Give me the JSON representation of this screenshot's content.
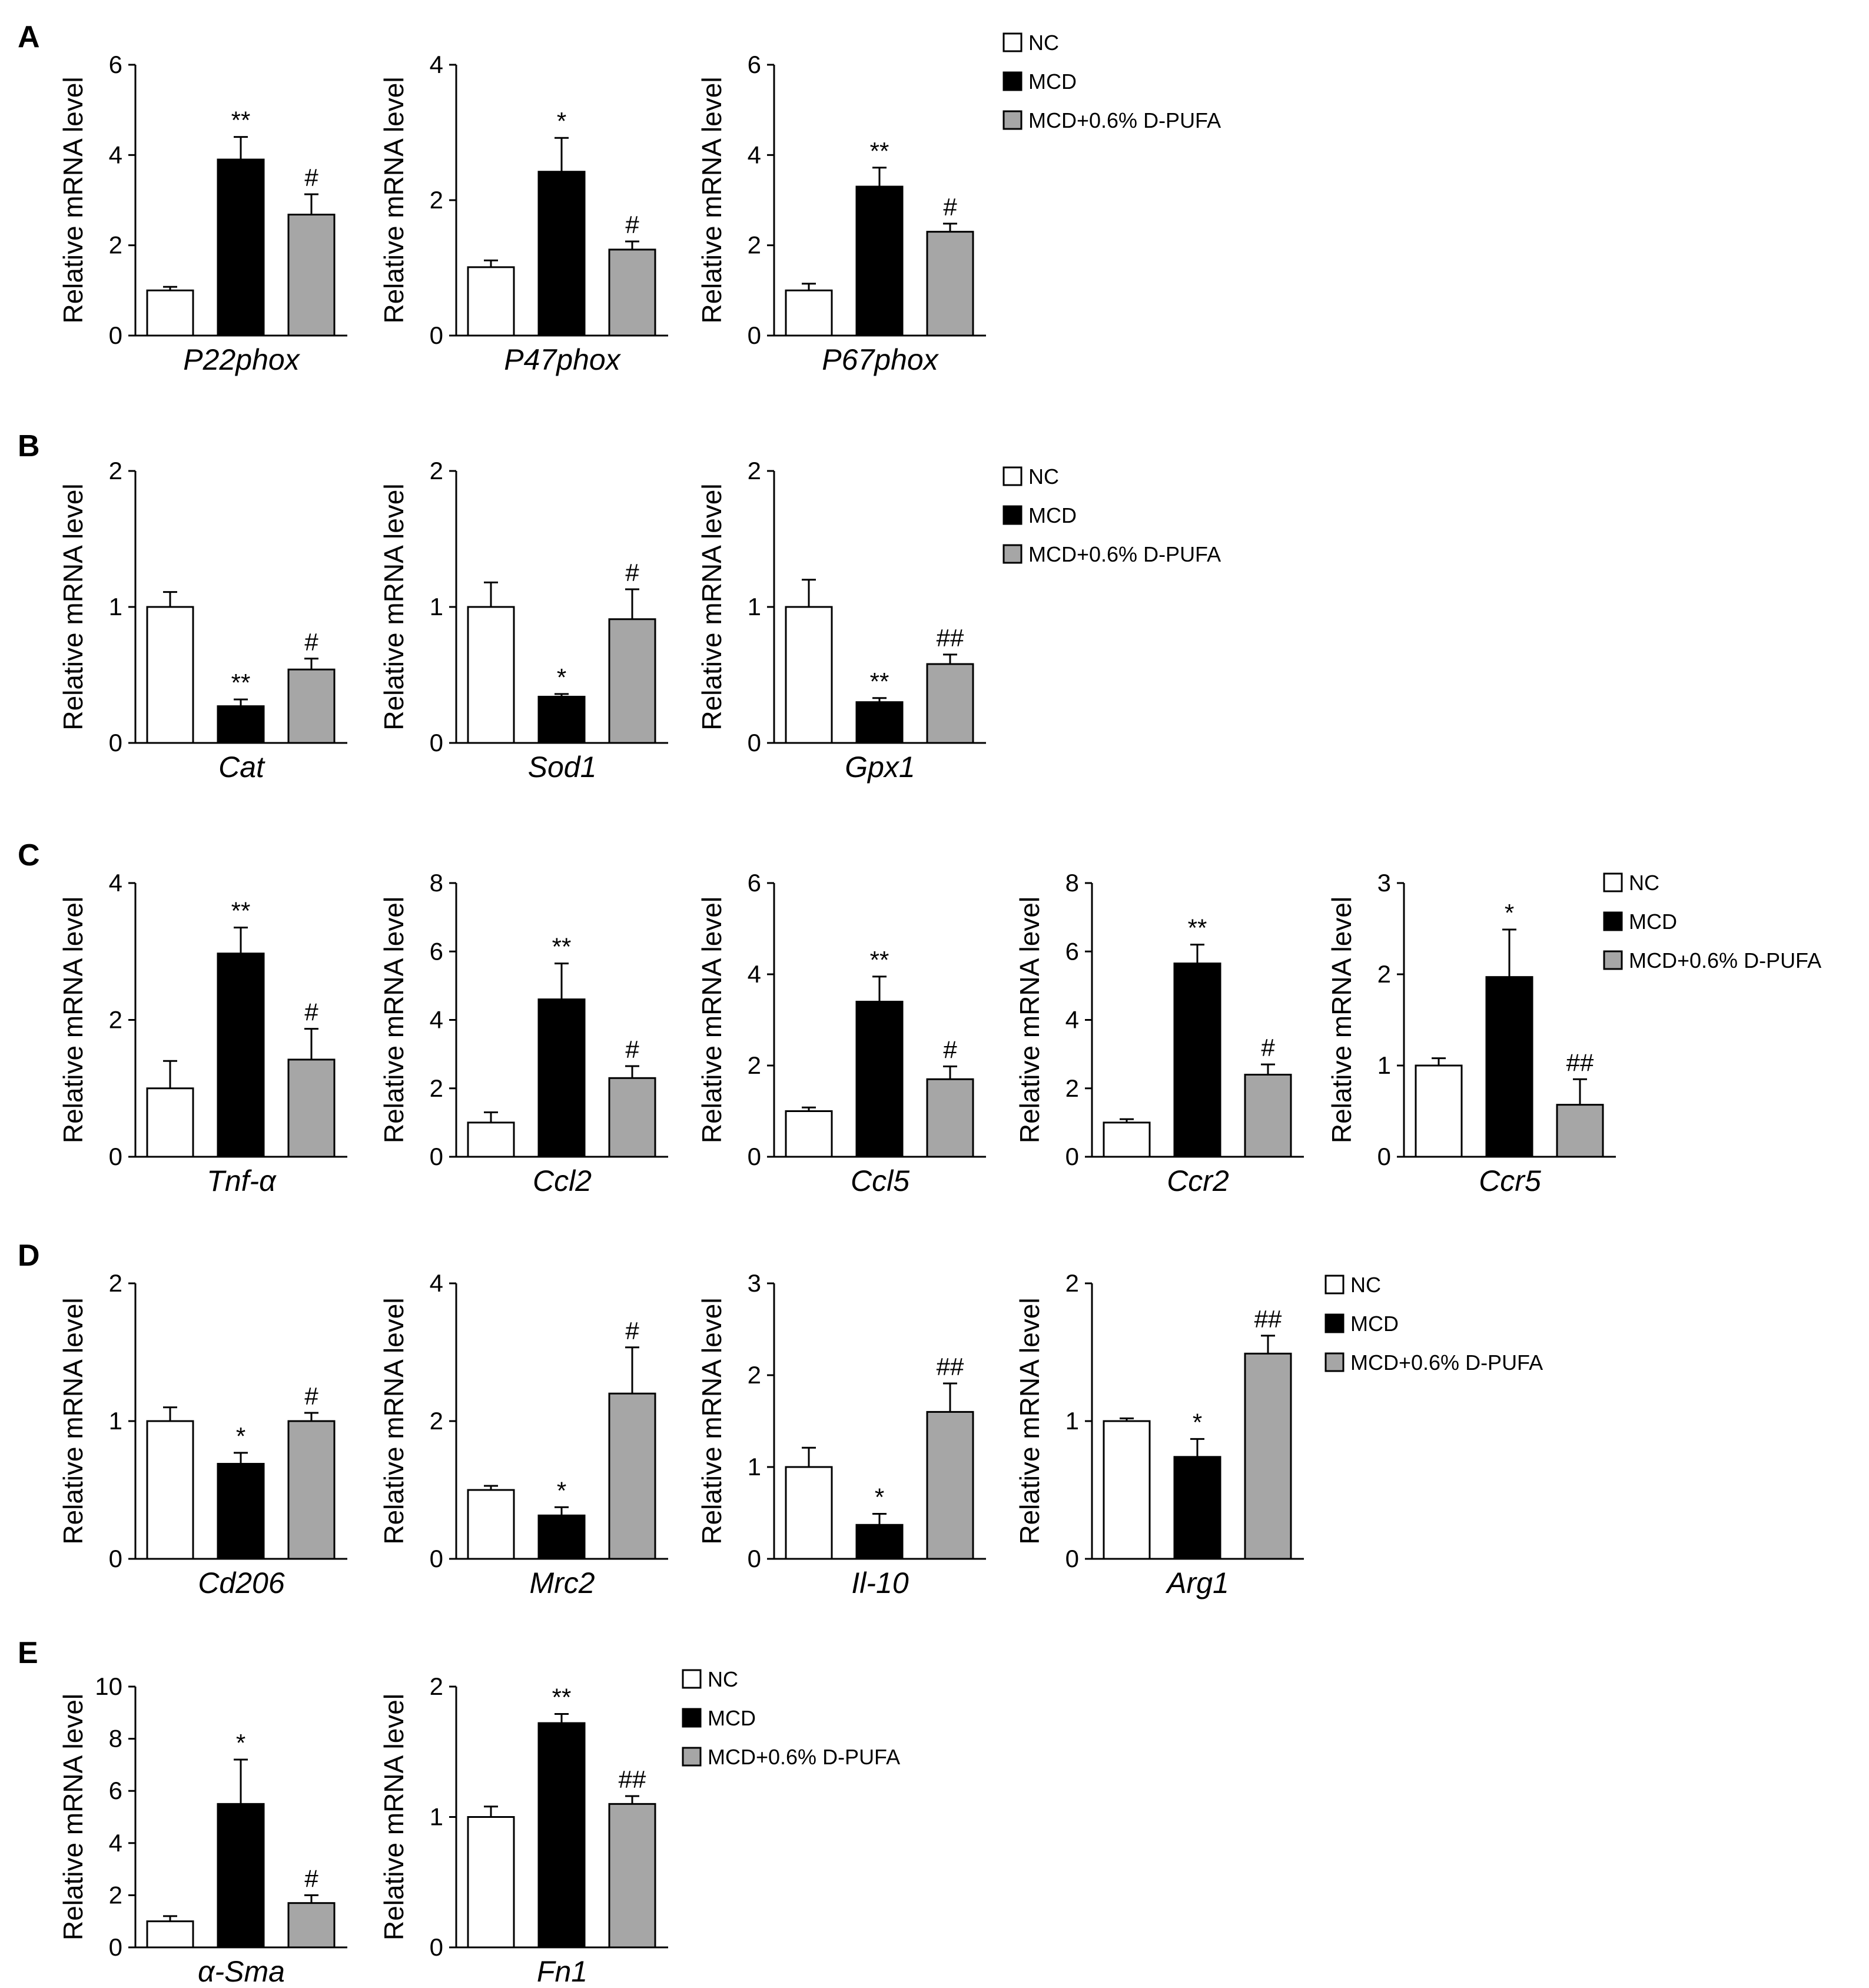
{
  "figure": {
    "y_axis_label": "Relative mRNA  level",
    "series_names": [
      "NC",
      "MCD",
      "MCD+0.6% D-PUFA"
    ],
    "series_colors": [
      "#ffffff",
      "#000000",
      "#a6a6a6"
    ],
    "panels": [
      "A",
      "B",
      "C",
      "D",
      "E"
    ]
  },
  "legend": {
    "items": [
      {
        "label": "NC",
        "color": "#ffffff"
      },
      {
        "label": "MCD",
        "color": "#000000"
      },
      {
        "label": "MCD+0.6% D-PUFA",
        "color": "#a6a6a6"
      }
    ]
  },
  "chart_data": [
    {
      "type": "bar",
      "panel": "A",
      "gene": "P22phox",
      "ylabel": "Relative mRNA  level",
      "ylim": [
        0,
        6
      ],
      "yticks": [
        "0",
        "2",
        "4",
        "6"
      ],
      "categories": [
        "NC",
        "MCD",
        "MCD+0.6% D-PUFA"
      ],
      "values": [
        1.0,
        3.9,
        2.68
      ],
      "errors": [
        0.08,
        0.5,
        0.45
      ],
      "significance": [
        "",
        "**",
        "#"
      ]
    },
    {
      "type": "bar",
      "panel": "A",
      "gene": "P47phox",
      "ylabel": "Relative mRNA  level",
      "ylim": [
        0,
        4
      ],
      "yticks": [
        "0",
        "2",
        "4"
      ],
      "categories": [
        "NC",
        "MCD",
        "MCD+0.6% D-PUFA"
      ],
      "values": [
        1.01,
        2.42,
        1.27
      ],
      "errors": [
        0.1,
        0.5,
        0.12
      ],
      "significance": [
        "",
        "*",
        "#"
      ]
    },
    {
      "type": "bar",
      "panel": "A",
      "gene": "P67phox",
      "ylabel": "Relative mRNA  level",
      "ylim": [
        0,
        6
      ],
      "yticks": [
        "0",
        "2",
        "4",
        "6"
      ],
      "categories": [
        "NC",
        "MCD",
        "MCD+0.6% D-PUFA"
      ],
      "values": [
        1.0,
        3.3,
        2.3
      ],
      "errors": [
        0.15,
        0.42,
        0.18
      ],
      "significance": [
        "",
        "**",
        "#"
      ]
    },
    {
      "type": "bar",
      "panel": "B",
      "gene": "Cat",
      "ylabel": "Relative mRNA  level",
      "ylim": [
        0,
        2
      ],
      "yticks": [
        "0",
        "1",
        "2"
      ],
      "categories": [
        "NC",
        "MCD",
        "MCD+0.6% D-PUFA"
      ],
      "values": [
        1.0,
        0.27,
        0.54
      ],
      "errors": [
        0.11,
        0.05,
        0.08
      ],
      "significance": [
        "",
        "**",
        "#"
      ]
    },
    {
      "type": "bar",
      "panel": "B",
      "gene": "Sod1",
      "ylabel": "Relative mRNA  level",
      "ylim": [
        0,
        2
      ],
      "yticks": [
        "0",
        "1",
        "2"
      ],
      "categories": [
        "NC",
        "MCD",
        "MCD+0.6% D-PUFA"
      ],
      "values": [
        1.0,
        0.34,
        0.91
      ],
      "errors": [
        0.18,
        0.02,
        0.22
      ],
      "significance": [
        "",
        "*",
        "#"
      ]
    },
    {
      "type": "bar",
      "panel": "B",
      "gene": "Gpx1",
      "ylabel": "Relative mRNA  level",
      "ylim": [
        0,
        2
      ],
      "yticks": [
        "0",
        "1",
        "2"
      ],
      "categories": [
        "NC",
        "MCD",
        "MCD+0.6% D-PUFA"
      ],
      "values": [
        1.0,
        0.3,
        0.58
      ],
      "errors": [
        0.2,
        0.03,
        0.07
      ],
      "significance": [
        "",
        "**",
        "##"
      ]
    },
    {
      "type": "bar",
      "panel": "C",
      "gene": "Tnf-α",
      "ylabel": "Relative mRNA  level",
      "ylim": [
        0,
        4
      ],
      "yticks": [
        "0",
        "2",
        "4"
      ],
      "categories": [
        "NC",
        "MCD",
        "MCD+0.6% D-PUFA"
      ],
      "values": [
        1.0,
        2.97,
        1.42
      ],
      "errors": [
        0.4,
        0.38,
        0.45
      ],
      "significance": [
        "",
        "**",
        "#"
      ]
    },
    {
      "type": "bar",
      "panel": "C",
      "gene": "Ccl2",
      "ylabel": "Relative mRNA  level",
      "ylim": [
        0,
        8
      ],
      "yticks": [
        "0",
        "2",
        "4",
        "6",
        "8"
      ],
      "categories": [
        "NC",
        "MCD",
        "MCD+0.6% D-PUFA"
      ],
      "values": [
        1.0,
        4.6,
        2.3
      ],
      "errors": [
        0.3,
        1.05,
        0.35
      ],
      "significance": [
        "",
        "**",
        "#"
      ]
    },
    {
      "type": "bar",
      "panel": "C",
      "gene": "Ccl5",
      "ylabel": "Relative mRNA  level",
      "ylim": [
        0,
        6
      ],
      "yticks": [
        "0",
        "2",
        "4",
        "6"
      ],
      "categories": [
        "NC",
        "MCD",
        "MCD+0.6% D-PUFA"
      ],
      "values": [
        1.0,
        3.4,
        1.7
      ],
      "errors": [
        0.08,
        0.55,
        0.28
      ],
      "significance": [
        "",
        "**",
        "#"
      ]
    },
    {
      "type": "bar",
      "panel": "C",
      "gene": "Ccr2",
      "ylabel": "Relative mRNA  level",
      "ylim": [
        0,
        8
      ],
      "yticks": [
        "0",
        "2",
        "4",
        "6",
        "8"
      ],
      "categories": [
        "NC",
        "MCD",
        "MCD+0.6% D-PUFA"
      ],
      "values": [
        1.0,
        5.65,
        2.4
      ],
      "errors": [
        0.1,
        0.55,
        0.3
      ],
      "significance": [
        "",
        "**",
        "#"
      ]
    },
    {
      "type": "bar",
      "panel": "C",
      "gene": "Ccr5",
      "ylabel": "Relative mRNA  level",
      "ylim": [
        0,
        3
      ],
      "yticks": [
        "0",
        "1",
        "2",
        "3"
      ],
      "categories": [
        "NC",
        "MCD",
        "MCD+0.6% D-PUFA"
      ],
      "values": [
        1.0,
        1.97,
        0.57
      ],
      "errors": [
        0.08,
        0.52,
        0.28
      ],
      "significance": [
        "",
        "*",
        "##"
      ]
    },
    {
      "type": "bar",
      "panel": "D",
      "gene": "Cd206",
      "ylabel": "Relative mRNA  level",
      "ylim": [
        0,
        2
      ],
      "yticks": [
        "0",
        "1",
        "2"
      ],
      "categories": [
        "NC",
        "MCD",
        "MCD+0.6% D-PUFA"
      ],
      "values": [
        1.0,
        0.69,
        1.0
      ],
      "errors": [
        0.1,
        0.08,
        0.06
      ],
      "significance": [
        "",
        "*",
        "#"
      ]
    },
    {
      "type": "bar",
      "panel": "D",
      "gene": "Mrc2",
      "ylabel": "Relative mRNA  level",
      "ylim": [
        0,
        4
      ],
      "yticks": [
        "0",
        "2",
        "4"
      ],
      "categories": [
        "NC",
        "MCD",
        "MCD+0.6% D-PUFA"
      ],
      "values": [
        1.0,
        0.63,
        2.4
      ],
      "errors": [
        0.06,
        0.12,
        0.67
      ],
      "significance": [
        "",
        "*",
        "#"
      ]
    },
    {
      "type": "bar",
      "panel": "D",
      "gene": "Il-10",
      "ylabel": "Relative mRNA  level",
      "ylim": [
        0,
        3
      ],
      "yticks": [
        "0",
        "1",
        "2",
        "3"
      ],
      "categories": [
        "NC",
        "MCD",
        "MCD+0.6% D-PUFA"
      ],
      "values": [
        1.0,
        0.37,
        1.6
      ],
      "errors": [
        0.21,
        0.12,
        0.31
      ],
      "significance": [
        "",
        "*",
        "##"
      ]
    },
    {
      "type": "bar",
      "panel": "D",
      "gene": "Arg1",
      "ylabel": "Relative mRNA  level",
      "ylim": [
        0,
        2
      ],
      "yticks": [
        "0",
        "1",
        "2"
      ],
      "categories": [
        "NC",
        "MCD",
        "MCD+0.6% D-PUFA"
      ],
      "values": [
        1.0,
        0.74,
        1.49
      ],
      "errors": [
        0.02,
        0.13,
        0.13
      ],
      "significance": [
        "",
        "*",
        "##"
      ]
    },
    {
      "type": "bar",
      "panel": "E",
      "gene": "α-Sma",
      "ylabel": "Relative mRNA  level",
      "ylim": [
        0,
        10
      ],
      "yticks": [
        "0",
        "2",
        "4",
        "6",
        "8",
        "10"
      ],
      "categories": [
        "NC",
        "MCD",
        "MCD+0.6% D-PUFA"
      ],
      "values": [
        1.0,
        5.5,
        1.7
      ],
      "errors": [
        0.2,
        1.7,
        0.3
      ],
      "significance": [
        "",
        "*",
        "#"
      ]
    },
    {
      "type": "bar",
      "panel": "E",
      "gene": "Fn1",
      "ylabel": "Relative mRNA  level",
      "ylim": [
        0,
        2
      ],
      "yticks": [
        "0",
        "1",
        "2"
      ],
      "categories": [
        "NC",
        "MCD",
        "MCD+0.6% D-PUFA"
      ],
      "values": [
        1.0,
        1.72,
        1.1
      ],
      "errors": [
        0.08,
        0.07,
        0.06
      ],
      "significance": [
        "",
        "**",
        "##"
      ]
    }
  ]
}
